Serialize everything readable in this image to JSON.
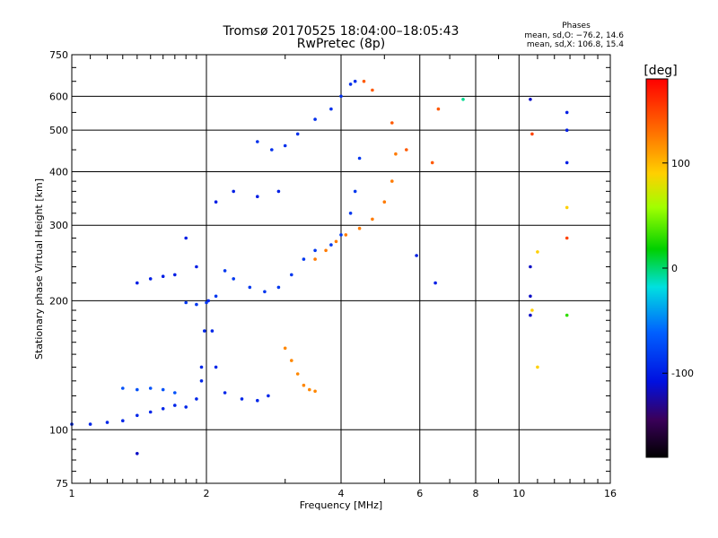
{
  "title_line1": "Tromsø 20170525 18:04:00–18:05:43",
  "title_line2": "RwPretec (8p)",
  "phase_info": {
    "heading": "Phases",
    "line_o": "mean, sd,O: −76.2, 14.6",
    "line_x": "mean, sd,X: 106.8, 15.4"
  },
  "chart_data": {
    "type": "scatter",
    "xlabel": "Frequency [MHz]",
    "ylabel": "Stationary phase Virtual Height [km]",
    "x_scale": "log",
    "y_scale": "log",
    "xlim": [
      1,
      16
    ],
    "ylim": [
      75,
      750
    ],
    "x_ticks": [
      1,
      2,
      4,
      6,
      8,
      10,
      16
    ],
    "y_ticks": [
      75,
      100,
      200,
      300,
      400,
      500,
      600,
      750
    ],
    "grid": true,
    "colorbar": {
      "label": "[deg]",
      "range": [
        -180,
        180
      ],
      "ticks": [
        100,
        0,
        -100
      ],
      "colormap": "rainbow"
    },
    "traces": [
      {
        "name": "",
        "phase": -95,
        "points": [
          [
            1.0,
            103
          ],
          [
            1.1,
            103
          ],
          [
            1.2,
            104
          ],
          [
            1.3,
            105
          ],
          [
            1.4,
            108
          ],
          [
            1.5,
            110
          ],
          [
            1.6,
            112
          ],
          [
            1.7,
            114
          ],
          [
            1.8,
            113
          ],
          [
            1.9,
            118
          ],
          [
            1.95,
            130
          ]
        ]
      },
      {
        "name": "",
        "phase": -95,
        "points": [
          [
            1.95,
            140
          ],
          [
            1.98,
            170
          ],
          [
            2.02,
            200
          ],
          [
            2.06,
            170
          ],
          [
            2.1,
            140
          ],
          [
            2.2,
            122
          ],
          [
            2.4,
            118
          ],
          [
            2.6,
            117
          ],
          [
            2.75,
            120
          ]
        ]
      },
      {
        "name": "",
        "phase": -85,
        "points": [
          [
            1.8,
            198
          ],
          [
            1.9,
            196
          ],
          [
            2.0,
            198
          ],
          [
            2.1,
            205
          ],
          [
            2.2,
            235
          ],
          [
            2.3,
            225
          ],
          [
            2.5,
            215
          ],
          [
            2.7,
            210
          ],
          [
            2.9,
            215
          ],
          [
            3.1,
            230
          ],
          [
            3.3,
            250
          ],
          [
            3.5,
            262
          ],
          [
            3.8,
            270
          ],
          [
            4.0,
            285
          ],
          [
            4.2,
            320
          ],
          [
            4.3,
            360
          ],
          [
            4.4,
            430
          ]
        ]
      },
      {
        "name": "",
        "phase": -90,
        "points": [
          [
            2.6,
            470
          ],
          [
            2.8,
            450
          ],
          [
            3.0,
            460
          ],
          [
            3.2,
            490
          ],
          [
            3.5,
            530
          ],
          [
            3.8,
            560
          ],
          [
            4.0,
            600
          ],
          [
            4.2,
            640
          ],
          [
            4.3,
            650
          ]
        ]
      },
      {
        "name": "",
        "phase": 125,
        "points": [
          [
            3.5,
            250
          ],
          [
            3.7,
            262
          ],
          [
            3.9,
            275
          ],
          [
            4.1,
            285
          ],
          [
            4.4,
            295
          ],
          [
            4.7,
            310
          ],
          [
            5.0,
            340
          ],
          [
            5.2,
            380
          ],
          [
            5.3,
            440
          ]
        ]
      },
      {
        "name": "",
        "phase": 120,
        "points": [
          [
            3.0,
            155
          ],
          [
            3.1,
            145
          ],
          [
            3.2,
            135
          ],
          [
            3.3,
            127
          ],
          [
            3.4,
            124
          ],
          [
            3.5,
            123
          ]
        ]
      },
      {
        "name": "",
        "phase": -70,
        "points": [
          [
            1.3,
            125
          ],
          [
            1.4,
            124
          ],
          [
            1.5,
            125
          ],
          [
            1.6,
            124
          ],
          [
            1.7,
            122
          ]
        ]
      },
      {
        "name": "",
        "phase": -100,
        "points": [
          [
            1.4,
            220
          ],
          [
            1.5,
            225
          ],
          [
            1.6,
            228
          ],
          [
            1.7,
            230
          ],
          [
            1.8,
            280
          ],
          [
            1.9,
            240
          ],
          [
            2.1,
            340
          ],
          [
            2.3,
            360
          ],
          [
            2.6,
            350
          ],
          [
            2.9,
            360
          ]
        ]
      },
      {
        "name": "",
        "phase": 140,
        "points": [
          [
            4.5,
            650
          ],
          [
            4.7,
            620
          ],
          [
            5.2,
            520
          ],
          [
            5.6,
            450
          ],
          [
            6.4,
            420
          ],
          [
            6.6,
            560
          ]
        ]
      },
      {
        "name": "",
        "phase": -5,
        "points": [
          [
            7.5,
            590
          ]
        ]
      },
      {
        "name": "",
        "phase": -115,
        "points": [
          [
            10.6,
            590
          ],
          [
            10.6,
            240
          ],
          [
            10.6,
            205
          ],
          [
            10.6,
            185
          ],
          [
            1.4,
            88
          ]
        ]
      },
      {
        "name": "",
        "phase": 90,
        "points": [
          [
            10.7,
            190
          ],
          [
            11.0,
            260
          ],
          [
            11.0,
            140
          ],
          [
            12.8,
            330
          ]
        ]
      },
      {
        "name": "",
        "phase": -100,
        "points": [
          [
            12.8,
            550
          ],
          [
            12.8,
            500
          ],
          [
            12.8,
            420
          ],
          [
            6.5,
            220
          ],
          [
            5.9,
            255
          ]
        ]
      },
      {
        "name": "",
        "phase": 150,
        "points": [
          [
            12.8,
            280
          ],
          [
            10.7,
            490
          ]
        ]
      },
      {
        "name": "",
        "phase": 30,
        "points": [
          [
            12.8,
            185
          ]
        ]
      }
    ]
  }
}
